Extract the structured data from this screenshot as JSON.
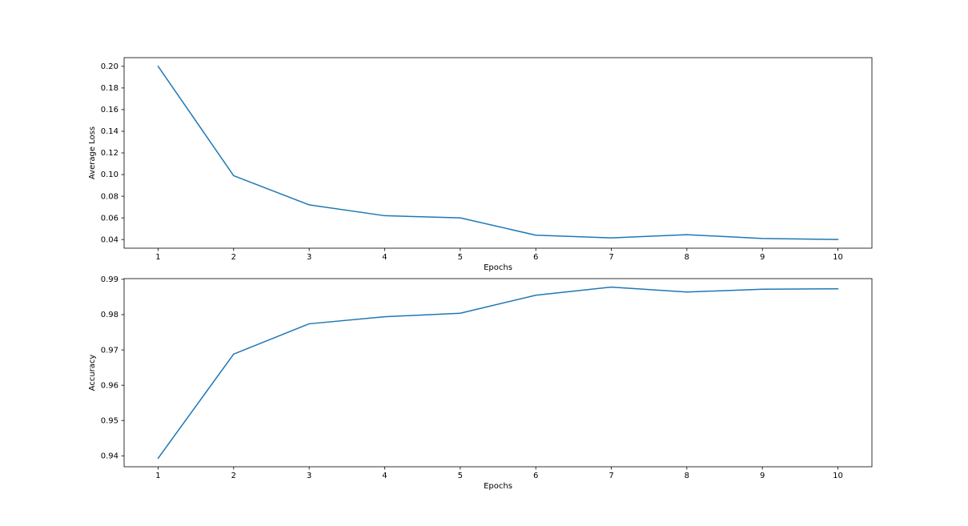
{
  "figure": {
    "background": "#ffffff",
    "text_color": "#000000",
    "axis_color": "#000000",
    "line_color": "#1f77b4"
  },
  "chart_data": [
    {
      "id": "loss",
      "type": "line",
      "title": "",
      "xlabel": "Epochs",
      "ylabel": "Average Loss",
      "x": [
        1,
        2,
        3,
        4,
        5,
        6,
        7,
        8,
        9,
        10
      ],
      "xtick_labels": [
        "1",
        "2",
        "3",
        "4",
        "5",
        "6",
        "7",
        "8",
        "9",
        "10"
      ],
      "series": [
        {
          "name": "average-loss",
          "color": "#1f77b4",
          "values": [
            0.2,
            0.099,
            0.072,
            0.062,
            0.06,
            0.044,
            0.0415,
            0.0445,
            0.041,
            0.04
          ]
        }
      ],
      "yticks": [
        0.04,
        0.06,
        0.08,
        0.1,
        0.12,
        0.14,
        0.16,
        0.18,
        0.2
      ],
      "ytick_labels": [
        "0.04",
        "0.06",
        "0.08",
        "0.10",
        "0.12",
        "0.14",
        "0.16",
        "0.18",
        "0.20"
      ],
      "ylim": [
        0.032,
        0.208
      ],
      "xlim": [
        0.55,
        10.45
      ],
      "grid": false,
      "legend": "none"
    },
    {
      "id": "accuracy",
      "type": "line",
      "title": "",
      "xlabel": "Epochs",
      "ylabel": "Accuracy",
      "x": [
        1,
        2,
        3,
        4,
        5,
        6,
        7,
        8,
        9,
        10
      ],
      "xtick_labels": [
        "1",
        "2",
        "3",
        "4",
        "5",
        "6",
        "7",
        "8",
        "9",
        "10"
      ],
      "series": [
        {
          "name": "accuracy",
          "color": "#1f77b4",
          "values": [
            0.9393,
            0.9688,
            0.9774,
            0.9794,
            0.9804,
            0.9855,
            0.9878,
            0.9864,
            0.9872,
            0.9873
          ]
        }
      ],
      "yticks": [
        0.94,
        0.95,
        0.96,
        0.97,
        0.98,
        0.99
      ],
      "ytick_labels": [
        "0.94",
        "0.95",
        "0.96",
        "0.97",
        "0.98",
        "0.99"
      ],
      "ylim": [
        0.9369,
        0.9902
      ],
      "xlim": [
        0.55,
        10.45
      ],
      "grid": false,
      "legend": "none"
    }
  ]
}
